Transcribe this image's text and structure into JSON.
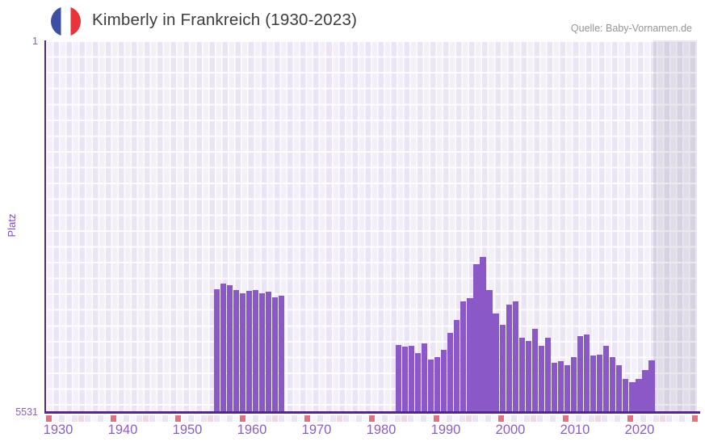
{
  "header": {
    "title": "Kimberly in Frankreich (1930-2023)",
    "source": "Quelle: Baby-Vornamen.de"
  },
  "colors": {
    "bar": "#8b59c7",
    "axis": "#52288c",
    "tick_text": "#8a5fc0",
    "flag_blue": "#3d4fa1",
    "flag_red": "#e8343b"
  },
  "chart_data": {
    "type": "bar",
    "title": "Kimberly in Frankreich (1930-2023)",
    "xlabel": "",
    "ylabel": "Platz",
    "y_axis": {
      "top_label": "1",
      "bottom_label": "5531",
      "min": 1,
      "max": 5531,
      "inverted": true
    },
    "x_ticks": [
      1930,
      1940,
      1950,
      1960,
      1970,
      1980,
      1990,
      2000,
      2010,
      2020
    ],
    "x_range": [
      1928,
      2029
    ],
    "grid": true,
    "legend": false,
    "bar_color": "#8b59c7",
    "no_data_after": 2021,
    "points": [
      {
        "year": 1954,
        "rank": 3712
      },
      {
        "year": 1955,
        "rank": 3627
      },
      {
        "year": 1956,
        "rank": 3651
      },
      {
        "year": 1957,
        "rank": 3724
      },
      {
        "year": 1958,
        "rank": 3772
      },
      {
        "year": 1959,
        "rank": 3736
      },
      {
        "year": 1960,
        "rank": 3724
      },
      {
        "year": 1961,
        "rank": 3772
      },
      {
        "year": 1962,
        "rank": 3748
      },
      {
        "year": 1963,
        "rank": 3832
      },
      {
        "year": 1964,
        "rank": 3808
      },
      {
        "year": 1982,
        "rank": 4543
      },
      {
        "year": 1983,
        "rank": 4567
      },
      {
        "year": 1984,
        "rank": 4555
      },
      {
        "year": 1985,
        "rank": 4663
      },
      {
        "year": 1986,
        "rank": 4519
      },
      {
        "year": 1987,
        "rank": 4760
      },
      {
        "year": 1988,
        "rank": 4723
      },
      {
        "year": 1989,
        "rank": 4615
      },
      {
        "year": 1990,
        "rank": 4362
      },
      {
        "year": 1991,
        "rank": 4169
      },
      {
        "year": 1992,
        "rank": 3892
      },
      {
        "year": 1993,
        "rank": 3843
      },
      {
        "year": 1994,
        "rank": 3338
      },
      {
        "year": 1995,
        "rank": 3230
      },
      {
        "year": 1996,
        "rank": 3723
      },
      {
        "year": 1997,
        "rank": 4072
      },
      {
        "year": 1998,
        "rank": 4241
      },
      {
        "year": 1999,
        "rank": 3940
      },
      {
        "year": 2000,
        "rank": 3892
      },
      {
        "year": 2001,
        "rank": 4434
      },
      {
        "year": 2002,
        "rank": 4482
      },
      {
        "year": 2003,
        "rank": 4301
      },
      {
        "year": 2004,
        "rank": 4555
      },
      {
        "year": 2005,
        "rank": 4434
      },
      {
        "year": 2006,
        "rank": 4808
      },
      {
        "year": 2007,
        "rank": 4783
      },
      {
        "year": 2008,
        "rank": 4844
      },
      {
        "year": 2009,
        "rank": 4723
      },
      {
        "year": 2010,
        "rank": 4410
      },
      {
        "year": 2011,
        "rank": 4386
      },
      {
        "year": 2012,
        "rank": 4699
      },
      {
        "year": 2013,
        "rank": 4687
      },
      {
        "year": 2014,
        "rank": 4555
      },
      {
        "year": 2015,
        "rank": 4723
      },
      {
        "year": 2016,
        "rank": 4844
      },
      {
        "year": 2017,
        "rank": 5049
      },
      {
        "year": 2018,
        "rank": 5097
      },
      {
        "year": 2019,
        "rank": 5049
      },
      {
        "year": 2020,
        "rank": 4916
      },
      {
        "year": 2021,
        "rank": 4771
      }
    ]
  },
  "strip": {
    "cells": 101,
    "start_year": 1928,
    "decade_color": "#e7717b",
    "half_decade_color": "#f3d7e0",
    "even_color": "#ebe4f3",
    "odd_color": "#f8f5fc"
  }
}
